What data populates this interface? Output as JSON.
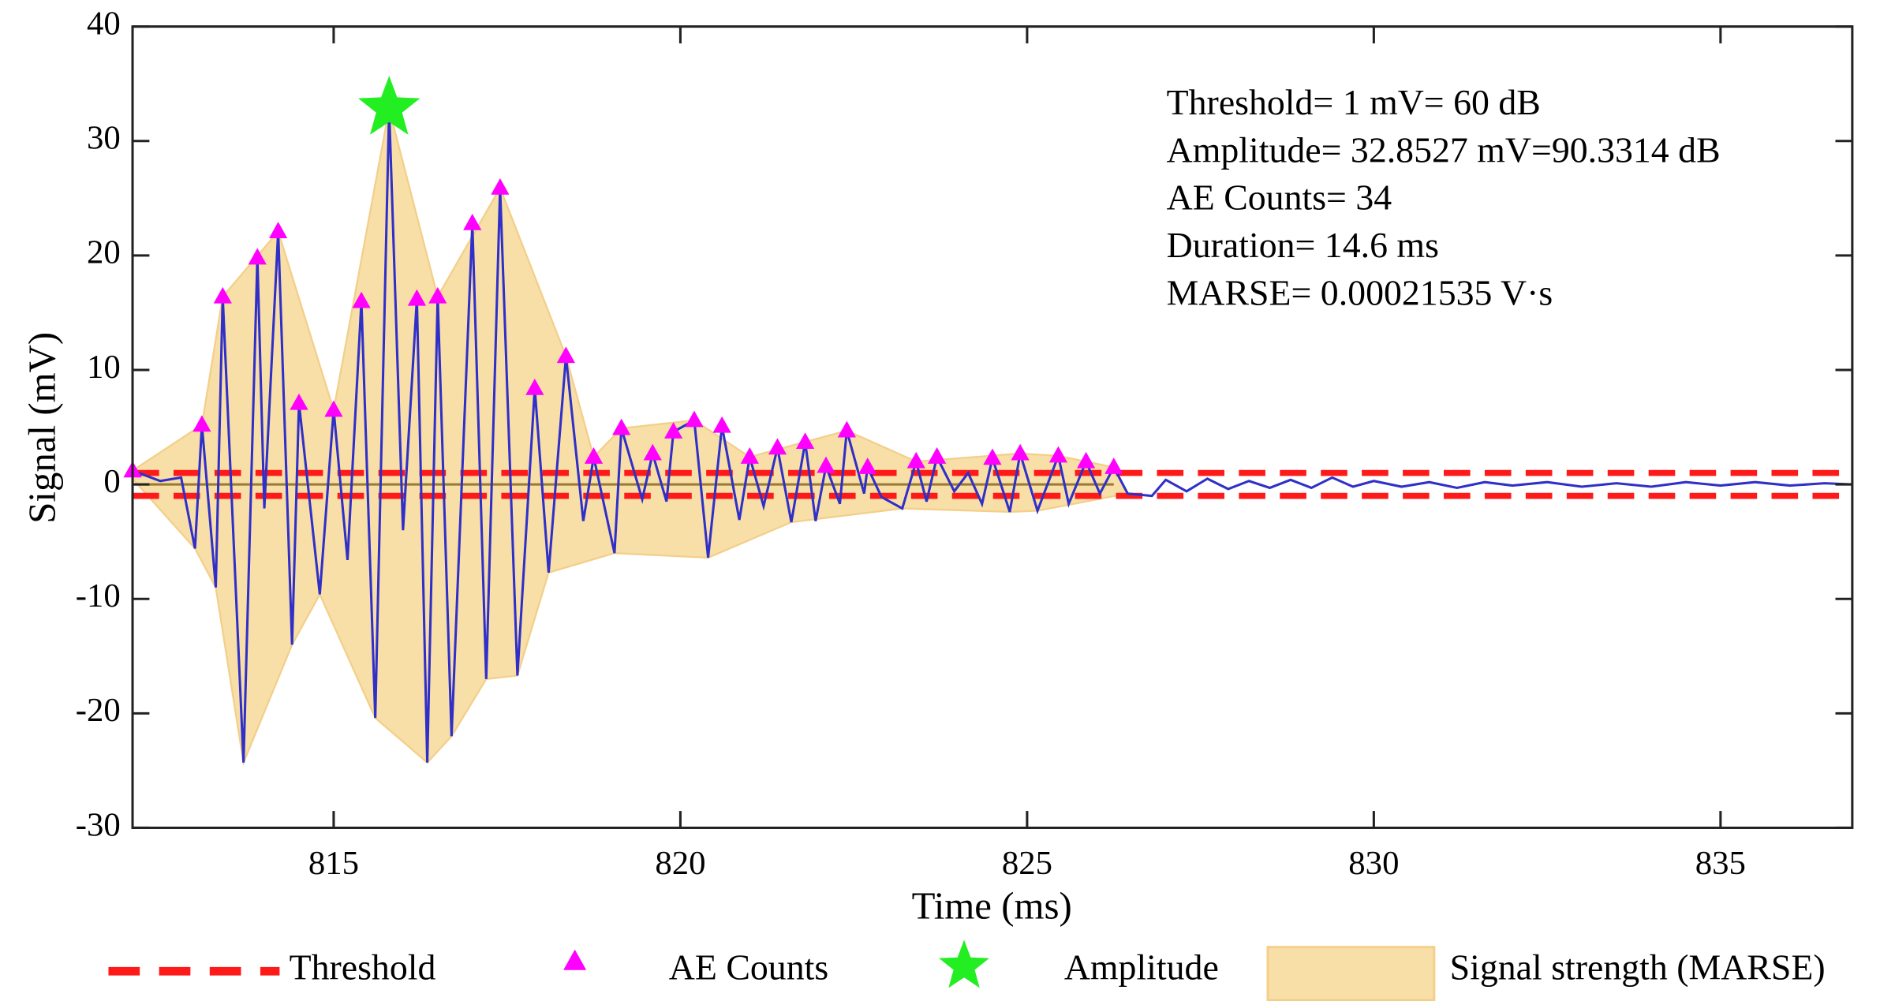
{
  "chart_data": {
    "type": "line",
    "xlabel": "Time (ms)",
    "ylabel": "Signal (mV)",
    "xlim": [
      812.1,
      836.9
    ],
    "ylim": [
      -30,
      40
    ],
    "xticks": [
      815,
      820,
      825,
      830,
      835
    ],
    "yticks": [
      -30,
      -20,
      -10,
      0,
      10,
      20,
      30,
      40
    ],
    "signal": {
      "color": "#3030c8",
      "x": [
        812.1,
        812.5,
        812.8,
        813.0,
        813.1,
        813.3,
        813.4,
        813.7,
        813.9,
        814.0,
        814.2,
        814.4,
        814.5,
        814.8,
        815.0,
        815.2,
        815.4,
        815.6,
        815.8,
        816.0,
        816.2,
        816.35,
        816.5,
        816.7,
        817.0,
        817.2,
        817.4,
        817.65,
        817.9,
        818.1,
        818.35,
        818.6,
        818.75,
        819.05,
        819.15,
        819.45,
        819.6,
        819.8,
        819.9,
        820.2,
        820.4,
        820.6,
        820.85,
        821.0,
        821.2,
        821.4,
        821.6,
        821.8,
        821.95,
        822.1,
        822.3,
        822.4,
        822.65,
        822.7,
        822.9,
        823.2,
        823.4,
        823.55,
        823.7,
        823.95,
        824.15,
        824.35,
        824.5,
        824.75,
        824.9,
        825.15,
        825.45,
        825.6,
        825.85,
        826.05,
        826.25,
        826.45,
        826.8,
        827.0,
        827.3,
        827.6,
        827.9,
        828.2,
        828.5,
        828.8,
        829.1,
        829.4,
        829.7,
        830.0,
        830.4,
        830.8,
        831.2,
        831.6,
        832.0,
        832.5,
        833.0,
        833.5,
        834.0,
        834.5,
        835.0,
        835.5,
        836.0,
        836.5,
        836.9
      ],
      "values": [
        1.2,
        0.3,
        0.6,
        -5.6,
        5.2,
        -9.0,
        16.4,
        -24.3,
        19.8,
        -2.1,
        22.1,
        -14.0,
        7.1,
        -9.6,
        6.5,
        -6.6,
        16.0,
        -20.4,
        32.85,
        -4.0,
        16.2,
        -24.3,
        16.4,
        -22.0,
        22.8,
        -17.0,
        25.9,
        -16.7,
        8.4,
        -7.7,
        11.2,
        -3.2,
        2.4,
        -6.0,
        4.9,
        -1.3,
        2.7,
        -1.5,
        4.6,
        5.6,
        -6.4,
        5.1,
        -3.1,
        2.4,
        -1.9,
        3.2,
        -3.3,
        3.7,
        -3.2,
        1.6,
        -1.7,
        4.7,
        -0.8,
        1.5,
        -1.1,
        -2.1,
        2.0,
        -1.5,
        2.4,
        -0.6,
        1.0,
        -1.7,
        2.3,
        -2.4,
        2.7,
        -2.3,
        2.5,
        -1.7,
        2.0,
        -0.8,
        1.5,
        -0.8,
        -1.0,
        0.4,
        -0.6,
        0.5,
        -0.4,
        0.3,
        -0.3,
        0.4,
        -0.3,
        0.6,
        -0.2,
        0.3,
        -0.2,
        0.2,
        -0.3,
        0.2,
        -0.1,
        0.2,
        -0.2,
        0.1,
        -0.2,
        0.2,
        -0.1,
        0.2,
        -0.1,
        0.1,
        0
      ]
    },
    "threshold": {
      "name": "Threshold",
      "color": "#ff1a1a",
      "values": [
        1,
        -1
      ]
    },
    "ae_counts": {
      "name": "AE Counts",
      "color": "#ff00ff",
      "x": [
        812.1,
        813.1,
        813.4,
        813.9,
        814.2,
        814.5,
        815.0,
        815.4,
        816.2,
        816.5,
        817.0,
        817.4,
        817.9,
        818.35,
        818.75,
        819.15,
        819.6,
        819.9,
        820.2,
        820.6,
        821.0,
        821.4,
        821.8,
        822.1,
        822.4,
        822.7,
        823.4,
        823.7,
        824.5,
        824.9,
        825.45,
        825.85,
        826.25
      ],
      "values": [
        1.2,
        5.2,
        16.4,
        19.8,
        22.1,
        7.1,
        6.5,
        16.0,
        16.2,
        16.4,
        22.8,
        25.9,
        8.4,
        11.2,
        2.4,
        4.9,
        2.7,
        4.6,
        5.6,
        5.1,
        2.4,
        3.2,
        3.7,
        1.6,
        4.7,
        1.5,
        2.0,
        2.4,
        2.3,
        2.7,
        2.5,
        2.0,
        1.5
      ]
    },
    "amplitude": {
      "name": "Amplitude",
      "color": "#22ee22",
      "x": 815.8,
      "value": 32.85
    },
    "envelope": {
      "name": "Signal strength (MARSE)",
      "color": "#f8dfa8",
      "x_upper": [
        812.1,
        813.1,
        813.4,
        814.2,
        815.0,
        815.8,
        816.5,
        817.4,
        818.35,
        818.75,
        819.15,
        820.2,
        821.0,
        822.4,
        823.4,
        824.9,
        825.45,
        826.25
      ],
      "upper": [
        1.2,
        5.2,
        16.4,
        22.1,
        6.5,
        32.8,
        16.4,
        25.9,
        11.2,
        2.4,
        4.9,
        5.6,
        2.4,
        4.7,
        2.0,
        2.7,
        2.5,
        1.5
      ],
      "x_lower": [
        812.1,
        813.0,
        813.3,
        813.7,
        814.4,
        814.8,
        815.6,
        816.35,
        816.7,
        817.2,
        817.65,
        818.1,
        819.05,
        820.4,
        821.6,
        823.2,
        824.75,
        825.15,
        826.45
      ],
      "lower": [
        0.5,
        -5.6,
        -9.0,
        -24.3,
        -14.0,
        -9.6,
        -20.4,
        -24.3,
        -22.0,
        -17.0,
        -16.7,
        -7.7,
        -6.0,
        -6.4,
        -3.3,
        -2.1,
        -2.4,
        -2.3,
        -0.8
      ]
    },
    "annotations": [
      "Threshold= 1 mV= 60 dB",
      "Amplitude= 32.8527 mV=90.3314 dB",
      "AE Counts= 34",
      "Duration= 14.6 ms",
      "MARSE= 0.00021535 V·s"
    ]
  }
}
